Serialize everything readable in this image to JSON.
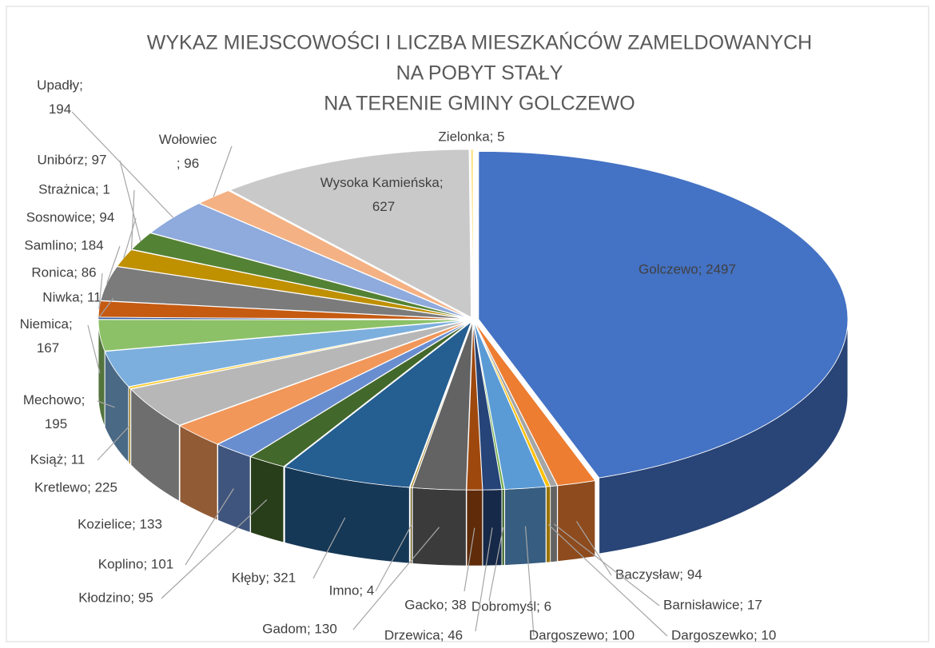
{
  "chart_data": {
    "type": "pie",
    "title": [
      "WYKAZ MIEJSCOWOŚCI I LICZBA MIESZKAŃCÓW ZAMELDOWANYCH",
      "NA POBYT STAŁY",
      "NA TERENIE GMINY GOLCZEWO"
    ],
    "values": [
      2497,
      94,
      17,
      10,
      100,
      6,
      46,
      38,
      130,
      4,
      321,
      95,
      101,
      133,
      225,
      11,
      195,
      167,
      11,
      86,
      184,
      94,
      1,
      97,
      194,
      96,
      627,
      5
    ],
    "value_labels": [
      "Golczewo; 2497",
      "Baczysław; 94",
      "Barnisławice; 17",
      "Dargoszewko; 10",
      "Dargoszewo; 100",
      "Dobromyśl; 6",
      "Drzewica; 46",
      "Gacko; 38",
      "Gadom; 130",
      "Imno; 4",
      "Kłęby; 321",
      "Kłodzino; 95",
      "Koplino; 101",
      "Kozielice; 133",
      "Kretlewo; 225",
      "Książ; 11",
      "Mechowo; 195",
      "Niemica; 167",
      "Niwka; 11",
      "Ronica; 86",
      "Samlino; 184",
      "Sosnowice; 94",
      "Strażnica; 1",
      "Unibórz; 97",
      "Upadły; 194",
      "Wołowiec; 96",
      "Wysoka Kamieńska; 627",
      "Zielonka; 5"
    ],
    "colors": [
      "#4472c4",
      "#ed7d31",
      "#a5a5a5",
      "#ffc000",
      "#5b9bd5",
      "#70ad47",
      "#264478",
      "#9e480e",
      "#636363",
      "#997300",
      "#255e91",
      "#43682b",
      "#698ed0",
      "#f1975a",
      "#b7b7b7",
      "#ffcd33",
      "#7cafdd",
      "#8cc168",
      "#335aa1",
      "#c55a11",
      "#7b7b7b",
      "#bf9000",
      "#2e75b6",
      "#548235",
      "#8faadc",
      "#f4b183",
      "#c9c9c9",
      "#ffd966"
    ]
  }
}
